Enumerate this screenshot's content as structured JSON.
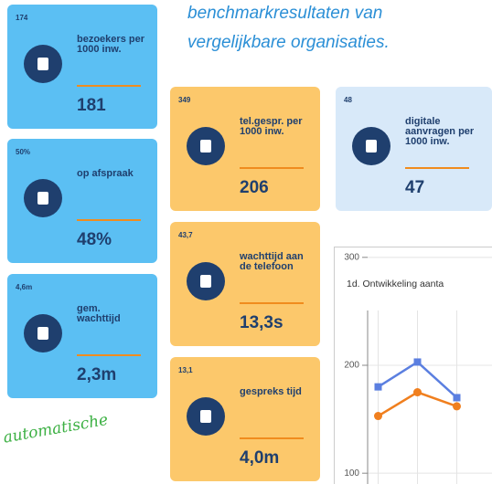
{
  "intro": [
    "benchmarkresultaten van",
    "vergelijkbare organisaties."
  ],
  "tiles": [
    {
      "benchmark": "174",
      "label": "bezoekers per 1000 inw.",
      "value": "181"
    },
    {
      "benchmark": "50%",
      "label": "op afspraak",
      "value": "48%"
    },
    {
      "benchmark": "4,6m",
      "label": "gem. wachttijd",
      "value": "2,3m"
    },
    {
      "benchmark": "349",
      "label": "tel.gespr. per 1000 inw.",
      "value": "206"
    },
    {
      "benchmark": "43,7",
      "label": "wachttijd aan de telefoon",
      "value": "13,3s"
    },
    {
      "benchmark": "13,1",
      "label": "gespreks tijd",
      "value": "4,0m"
    },
    {
      "benchmark": "48",
      "label": "digitale aanvragen per 1000 inw.",
      "value": "47"
    }
  ],
  "handwriting": "automatische",
  "chart_data": {
    "type": "line",
    "title": "1d. Ontwikkeling aanta",
    "categories": [
      null,
      null,
      null
    ],
    "series": [
      {
        "color": "#5b7fe0",
        "values": [
          180,
          203,
          170
        ]
      },
      {
        "color": "#f07f1e",
        "values": [
          153,
          175,
          162
        ]
      }
    ],
    "ylim": [
      90,
      310
    ],
    "yticks": [
      100,
      200,
      300
    ],
    "grid": true
  }
}
